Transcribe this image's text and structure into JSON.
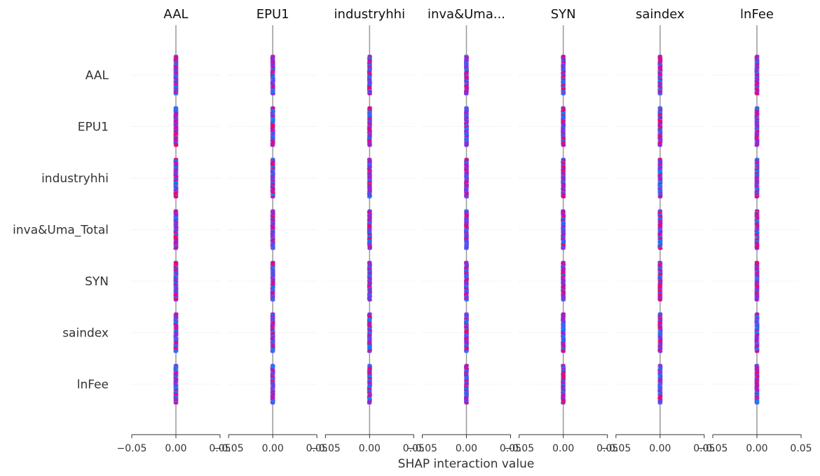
{
  "chart_data": {
    "type": "scatter",
    "subtype": "shap-interaction-summary",
    "xlabel": "SHAP interaction value",
    "panel_titles": [
      "AAL",
      "EPU1",
      "industryhhi",
      "inva&Uma...",
      "SYN",
      "saindex",
      "lnFee"
    ],
    "features": [
      "AAL",
      "EPU1",
      "industryhhi",
      "inva&Uma_Total",
      "SYN",
      "saindex",
      "lnFee"
    ],
    "xlim": [
      -0.05,
      0.05
    ],
    "x_ticks": [
      -0.05,
      0.0,
      0.05
    ],
    "x_tick_labels": [
      "−0.05",
      "0.00",
      "0.05"
    ],
    "y_range_per_row": [
      -0.0004,
      0.0004
    ],
    "colors": {
      "high": "#ff0052",
      "low": "#008bfb",
      "mid": "#8a2be2",
      "zero_line": "#999999",
      "text": "#333333",
      "grid": "#cccccc"
    }
  }
}
